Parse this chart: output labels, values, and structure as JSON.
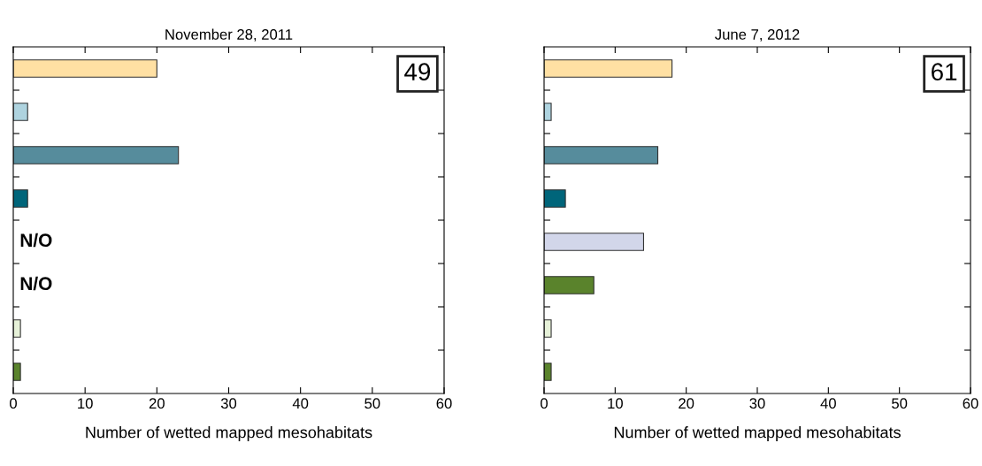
{
  "chart_data": [
    {
      "type": "bar",
      "orientation": "horizontal",
      "title": "November 28, 2011",
      "xlabel": "Number of wetted mapped mesohabitats",
      "categories": [
        null,
        null,
        null,
        null,
        null,
        null,
        null,
        null
      ],
      "values": [
        20,
        2,
        23,
        2,
        null,
        null,
        1,
        1
      ],
      "value_labels": [
        null,
        null,
        null,
        null,
        "N/O",
        "N/O",
        null,
        null
      ],
      "colors": [
        "#ffe0a3",
        "#aed3df",
        "#568c9c",
        "#00657a",
        "#d2d6ea",
        "#5a832c",
        "#e6f1d8",
        "#5a832c"
      ],
      "xlim": [
        0,
        60
      ],
      "xticks": [
        0,
        10,
        20,
        30,
        40,
        50,
        60
      ],
      "tick_labels": "x",
      "annotations": [
        "49"
      ],
      "grid": false,
      "legend": false
    },
    {
      "type": "bar",
      "orientation": "horizontal",
      "title": "June 7, 2012",
      "xlabel": "Number of wetted mapped mesohabitats",
      "categories": [
        null,
        null,
        null,
        null,
        null,
        null,
        null,
        null
      ],
      "values": [
        18,
        1,
        16,
        3,
        14,
        7,
        1,
        1
      ],
      "colors": [
        "#ffe0a3",
        "#aed3df",
        "#568c9c",
        "#00657a",
        "#d2d6ea",
        "#5a832c",
        "#e6f1d8",
        "#5a832c"
      ],
      "xlim": [
        0,
        60
      ],
      "xticks": [
        0,
        10,
        20,
        30,
        40,
        50,
        60
      ],
      "tick_labels": "x",
      "annotations": [
        "61"
      ],
      "grid": false,
      "legend": false
    }
  ]
}
